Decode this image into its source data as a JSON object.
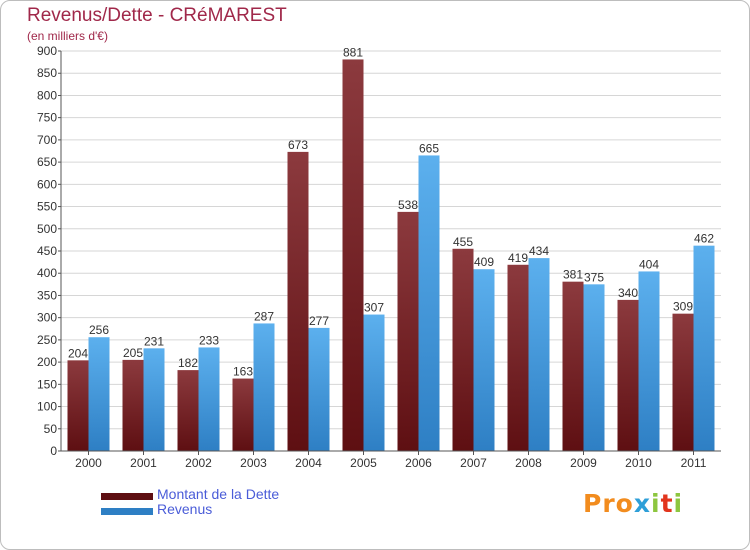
{
  "colors": {
    "dette_light": "#8c3a3e",
    "dette_dark": "#5e0f12",
    "revenus_light": "#5cb0ee",
    "revenus_dark": "#2e7fc4",
    "title": "#a0284a",
    "legend_text": "#4a5cd8"
  },
  "logo": {
    "text": "Proxiti",
    "letter_colors": [
      "#f28c1e",
      "#f28c1e",
      "#f28c1e",
      "#2e9fd8",
      "#8dc63f",
      "#e2351d",
      "#8dc63f"
    ]
  },
  "chart_data": {
    "type": "bar",
    "title": "Revenus/Dette - CRéMAREST",
    "subtitle": "(en milliers d'€)",
    "categories": [
      "2000",
      "2001",
      "2002",
      "2003",
      "2004",
      "2005",
      "2006",
      "2007",
      "2008",
      "2009",
      "2010",
      "2011"
    ],
    "series": [
      {
        "name": "Montant de la Dette",
        "values": [
          204,
          205,
          182,
          163,
          673,
          881,
          538,
          455,
          419,
          381,
          340,
          309
        ]
      },
      {
        "name": "Revenus",
        "values": [
          256,
          231,
          233,
          287,
          277,
          307,
          665,
          409,
          434,
          375,
          404,
          462
        ]
      }
    ],
    "ylim": [
      0,
      900
    ],
    "yticks": [
      0,
      50,
      100,
      150,
      200,
      250,
      300,
      350,
      400,
      450,
      500,
      550,
      600,
      650,
      700,
      750,
      800,
      850,
      900
    ],
    "grid": true,
    "legend_position": "bottom-left",
    "data_labels": true
  }
}
